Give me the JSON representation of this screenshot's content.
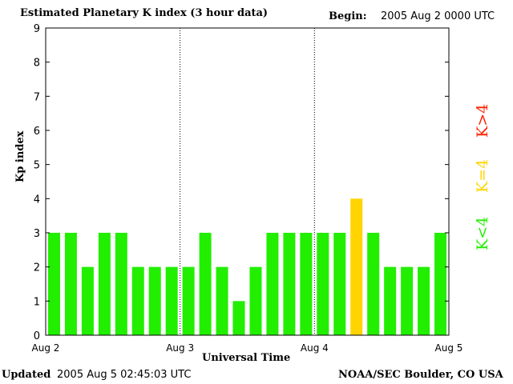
{
  "header": {
    "title": "Estimated Planetary K index (3 hour data)",
    "begin_label": "Begin:",
    "begin_value": "2005 Aug 2 0000 UTC"
  },
  "footer": {
    "updated_label": "Updated",
    "updated_value": "2005 Aug  5 02:45:03 UTC",
    "source": "NOAA/SEC Boulder, CO USA"
  },
  "legend": {
    "gt4": "K>4",
    "eq4": "K=4",
    "lt4": "K<4"
  },
  "colors": {
    "lt4": "#22ee00",
    "eq4": "#ffd400",
    "gt4": "#ff2200"
  },
  "chart_data": {
    "type": "bar",
    "title": "Estimated Planetary K index (3 hour data)",
    "xlabel": "Universal Time",
    "ylabel": "Kp index",
    "ylim": [
      0,
      9
    ],
    "yticks": [
      "0",
      "1",
      "2",
      "3",
      "4",
      "5",
      "6",
      "7",
      "8",
      "9"
    ],
    "xticks": [
      "Aug 2",
      "Aug 3",
      "Aug 4",
      "Aug 5"
    ],
    "values": [
      3,
      3,
      2,
      3,
      3,
      2,
      2,
      2,
      2,
      3,
      2,
      1,
      2,
      3,
      3,
      3,
      3,
      3,
      4,
      3,
      2,
      2,
      2,
      3
    ]
  }
}
